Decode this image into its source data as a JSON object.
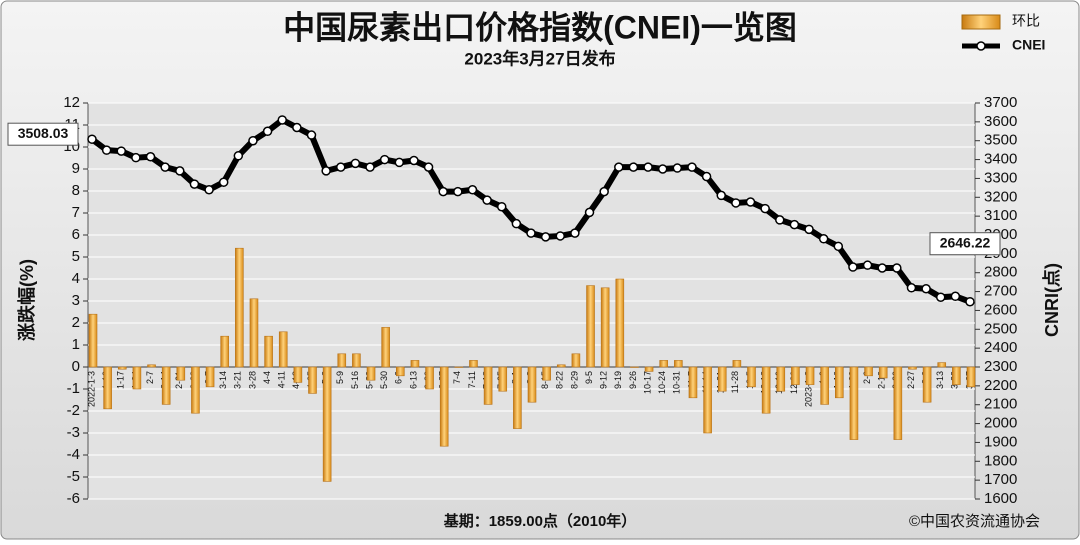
{
  "chart_data": {
    "type": "combo",
    "title": "中国尿素出口价格指数(CNEI)一览图",
    "subtitle": "2023年3月27日发布",
    "ylabel": "涨跌幅(%)",
    "y2label": "CNRI(点)",
    "footnote": "基期：1859.00点（2010年）",
    "source": "©中国农资流通协会",
    "categories": [
      "2022-1-3",
      "1-10",
      "1-17",
      "1-24",
      "2-7",
      "2-14",
      "2-21",
      "2-28",
      "3-7",
      "3-14",
      "3-21",
      "3-28",
      "4-4",
      "4-11",
      "4-18",
      "4-25",
      "5-2",
      "5-9",
      "5-16",
      "5-23",
      "5-30",
      "6-6",
      "6-13",
      "6-20",
      "6-27",
      "7-4",
      "7-11",
      "7-18",
      "7-25",
      "8-1",
      "8-8",
      "8-15",
      "8-22",
      "8-29",
      "9-5",
      "9-12",
      "9-19",
      "9-26",
      "10-17",
      "10-24",
      "10-31",
      "11-7",
      "11-14",
      "11-21",
      "11-28",
      "12-5",
      "12-12",
      "12-19",
      "12-26",
      "2023-1-2",
      "1-9",
      "1-16",
      "1-30",
      "2-6",
      "2-13",
      "2-20",
      "2-27",
      "3-6",
      "3-13",
      "3-20",
      "3-27"
    ],
    "series": [
      {
        "name": "环比",
        "type": "bar",
        "color": "#f0a830",
        "values": [
          2.4,
          -1.9,
          -0.1,
          -1.0,
          0.1,
          -1.7,
          -0.6,
          -2.1,
          -0.9,
          1.4,
          5.4,
          3.1,
          1.4,
          1.6,
          -0.7,
          -1.2,
          -5.2,
          0.6,
          0.6,
          -0.6,
          1.8,
          -0.4,
          0.3,
          -1.0,
          -3.6,
          0.0,
          0.3,
          -1.7,
          -1.1,
          -2.8,
          -1.6,
          -0.6,
          0.1,
          0.6,
          3.7,
          3.6,
          4.0,
          0.0,
          -0.2,
          0.3,
          0.3,
          -1.4,
          -3.0,
          -1.1,
          0.3,
          -0.9,
          -2.1,
          -1.1,
          -0.8,
          -0.8,
          -1.7,
          -1.4,
          -3.3,
          -0.4,
          -0.5,
          -3.3,
          -0.1,
          -1.6,
          0.2,
          -0.8,
          -0.9
        ]
      },
      {
        "name": "CNEI",
        "type": "line",
        "axis": "y2",
        "color": "#000000",
        "values": [
          3508.03,
          3450,
          3445,
          3410,
          3415,
          3360,
          3340,
          3270,
          3240,
          3280,
          3420,
          3500,
          3550,
          3610,
          3570,
          3530,
          3340,
          3360,
          3380,
          3360,
          3400,
          3385,
          3395,
          3360,
          3230,
          3230,
          3240,
          3185,
          3150,
          3060,
          3010,
          2990,
          2995,
          3010,
          3120,
          3230,
          3360,
          3360,
          3360,
          3350,
          3355,
          3360,
          3310,
          3210,
          3170,
          3175,
          3140,
          3080,
          3055,
          3030,
          2980,
          2940,
          2830,
          2840,
          2825,
          2825,
          2720,
          2715,
          2670,
          2675,
          2646.22
        ]
      }
    ],
    "ylim": [
      -6,
      12
    ],
    "yticks": [
      -6,
      -5,
      -4,
      -3,
      -2,
      -1,
      0,
      1,
      2,
      3,
      4,
      5,
      6,
      7,
      8,
      9,
      10,
      11,
      12
    ],
    "y2lim": [
      1600,
      3700
    ],
    "y2ticks": [
      1600,
      1700,
      1800,
      1900,
      2000,
      2100,
      2200,
      2300,
      2400,
      2500,
      2600,
      2700,
      2800,
      2900,
      3000,
      3100,
      3200,
      3300,
      3400,
      3500,
      3600,
      3700
    ],
    "grid": true
  }
}
